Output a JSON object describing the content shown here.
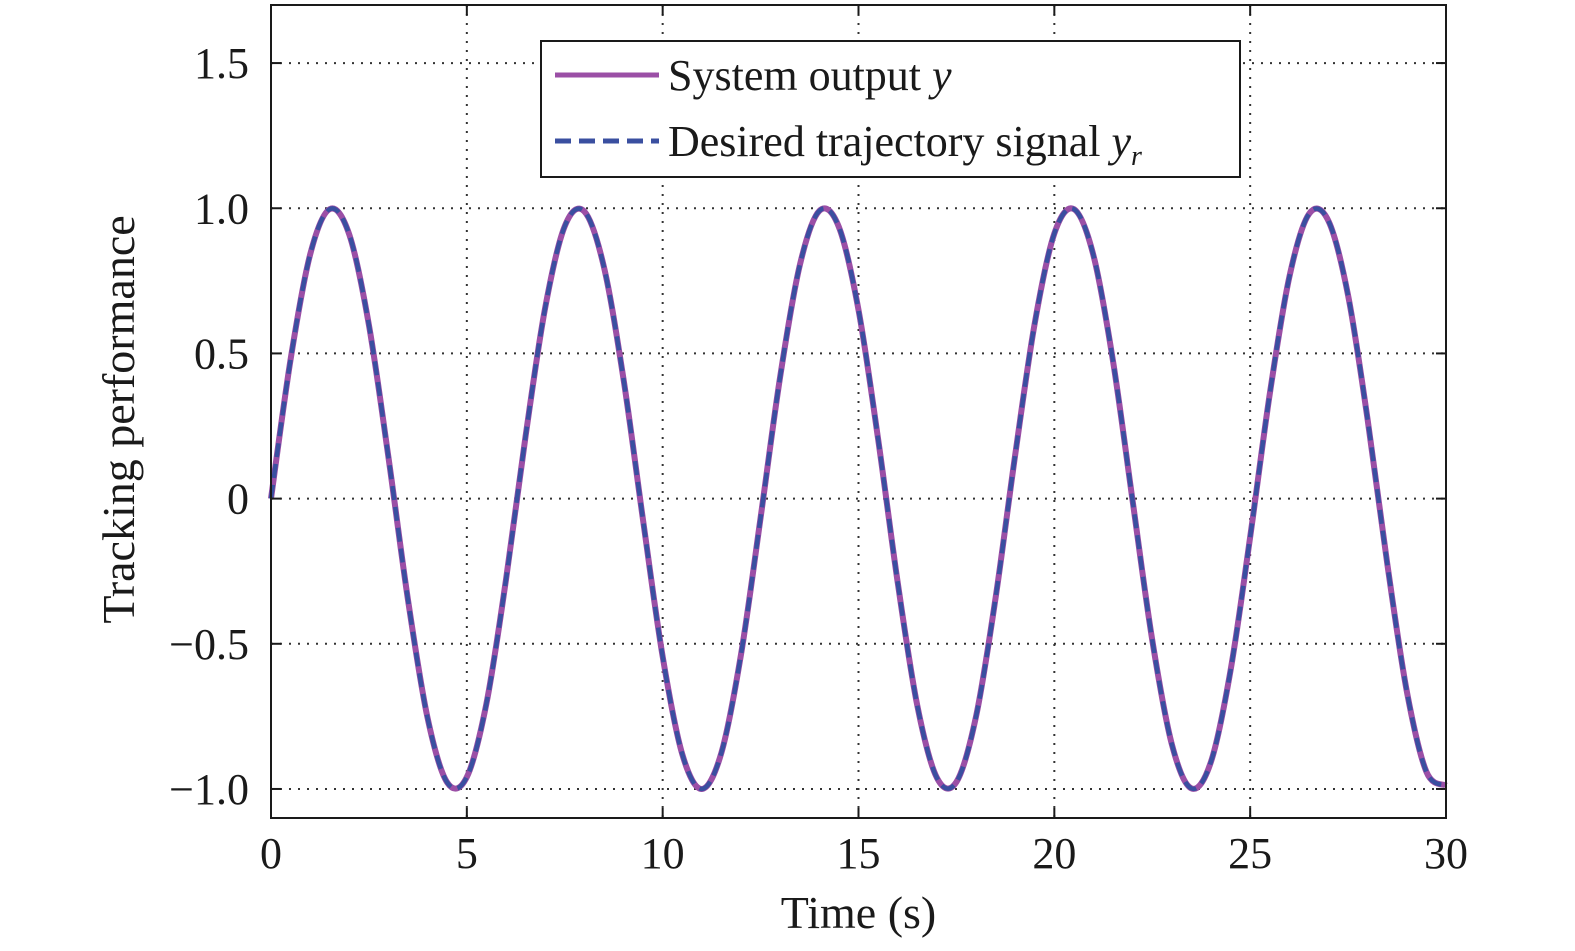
{
  "chart_data": {
    "type": "line",
    "title": "",
    "xlabel": "Time (s)",
    "ylabel": "Tracking performance",
    "xlim": [
      0,
      30
    ],
    "ylim": [
      -1.1,
      1.7
    ],
    "xticks": [
      0,
      5,
      10,
      15,
      20,
      25,
      30
    ],
    "xtick_labels": [
      "0",
      "5",
      "10",
      "15",
      "20",
      "25",
      "30"
    ],
    "yticks": [
      -1.0,
      -0.5,
      0,
      0.5,
      1.0,
      1.5
    ],
    "ytick_labels": [
      "−1.0",
      "−0.5",
      "0",
      "0.5",
      "1.0",
      "1.5"
    ],
    "grid": true,
    "legend_position": "top-center",
    "series": [
      {
        "name": "System output y",
        "legend_main": "System output ",
        "legend_var": "y",
        "legend_sub": "",
        "style": "solid",
        "color": "#9b4fa6",
        "x": [
          0,
          0.5,
          1,
          1.5,
          2,
          2.5,
          3,
          3.5,
          4,
          4.5,
          5,
          5.5,
          6,
          6.5,
          7,
          7.5,
          8,
          8.5,
          9,
          9.5,
          10,
          10.5,
          11,
          11.5,
          12,
          12.5,
          13,
          13.5,
          14,
          14.5,
          15,
          15.5,
          16,
          16.5,
          17,
          17.5,
          18,
          18.5,
          19,
          19.5,
          20,
          20.5,
          21,
          21.5,
          22,
          22.5,
          23,
          23.5,
          24,
          24.5,
          25,
          25.5,
          26,
          26.5,
          27,
          27.5,
          28,
          28.5,
          29,
          29.5,
          30
        ],
        "values": [
          0,
          0.479,
          0.841,
          0.997,
          0.909,
          0.598,
          0.141,
          -0.351,
          -0.757,
          -0.978,
          -0.959,
          -0.706,
          -0.279,
          0.215,
          0.657,
          0.938,
          0.989,
          0.798,
          0.412,
          -0.075,
          -0.544,
          -0.88,
          -1.0,
          -0.875,
          -0.537,
          -0.066,
          0.42,
          0.803,
          0.991,
          0.935,
          0.65,
          0.206,
          -0.288,
          -0.712,
          -0.961,
          -0.976,
          -0.751,
          -0.342,
          0.15,
          0.604,
          0.913,
          0.997,
          0.837,
          0.472,
          -0.009,
          -0.487,
          -0.846,
          -0.998,
          -0.906,
          -0.591,
          -0.132,
          0.36,
          0.763,
          0.98,
          0.956,
          0.7,
          0.271,
          -0.224,
          -0.664,
          -0.941,
          -0.988
        ]
      },
      {
        "name": "Desired trajectory signal yr",
        "legend_main": "Desired trajectory signal ",
        "legend_var": "y",
        "legend_sub": "r",
        "style": "dashed",
        "color": "#3a4fa0",
        "x": [
          0,
          0.5,
          1,
          1.5,
          2,
          2.5,
          3,
          3.5,
          4,
          4.5,
          5,
          5.5,
          6,
          6.5,
          7,
          7.5,
          8,
          8.5,
          9,
          9.5,
          10,
          10.5,
          11,
          11.5,
          12,
          12.5,
          13,
          13.5,
          14,
          14.5,
          15,
          15.5,
          16,
          16.5,
          17,
          17.5,
          18,
          18.5,
          19,
          19.5,
          20,
          20.5,
          21,
          21.5,
          22,
          22.5,
          23,
          23.5,
          24,
          24.5,
          25,
          25.5,
          26,
          26.5,
          27,
          27.5,
          28,
          28.5,
          29,
          29.5,
          30
        ],
        "values": [
          0,
          0.479,
          0.841,
          0.997,
          0.909,
          0.598,
          0.141,
          -0.351,
          -0.757,
          -0.978,
          -0.959,
          -0.706,
          -0.279,
          0.215,
          0.657,
          0.938,
          0.989,
          0.798,
          0.412,
          -0.075,
          -0.544,
          -0.88,
          -1.0,
          -0.875,
          -0.537,
          -0.066,
          0.42,
          0.803,
          0.991,
          0.935,
          0.65,
          0.206,
          -0.288,
          -0.712,
          -0.961,
          -0.976,
          -0.751,
          -0.342,
          0.15,
          0.604,
          0.913,
          0.997,
          0.837,
          0.472,
          -0.009,
          -0.487,
          -0.846,
          -0.998,
          -0.906,
          -0.591,
          -0.132,
          0.36,
          0.763,
          0.98,
          0.956,
          0.7,
          0.271,
          -0.224,
          -0.664,
          -0.941,
          -0.988
        ]
      }
    ]
  }
}
